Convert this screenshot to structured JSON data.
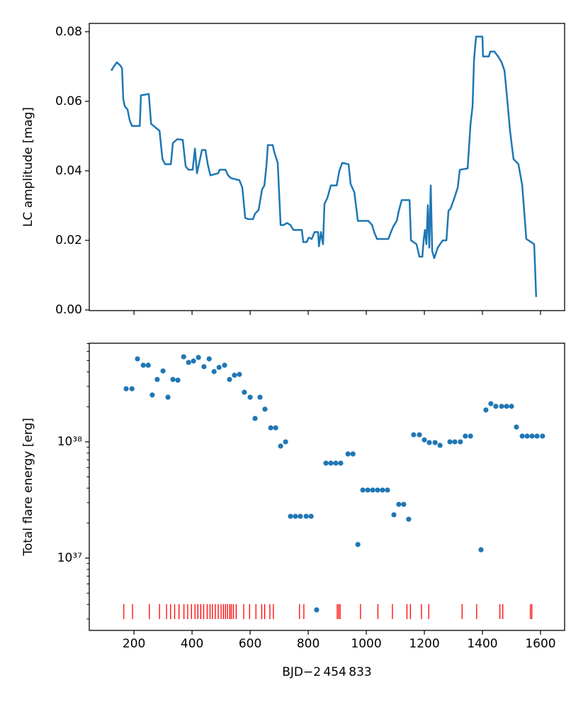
{
  "chart_data": [
    {
      "type": "line",
      "ylabel": "LC amplitude [mag]",
      "color": "#1f77b4",
      "x": [
        122,
        129,
        141,
        154,
        159,
        163,
        168,
        178,
        185,
        193,
        220,
        224,
        251,
        259,
        288,
        298,
        307,
        327,
        334,
        349,
        368,
        378,
        388,
        402,
        410,
        417,
        434,
        446,
        454,
        463,
        490,
        495,
        515,
        524,
        534,
        563,
        573,
        583,
        593,
        610,
        617,
        629,
        641,
        649,
        656,
        661,
        678,
        683,
        695,
        705,
        715,
        727,
        739,
        749,
        778,
        783,
        795,
        802,
        812,
        822,
        834,
        837,
        844,
        851,
        856,
        866,
        878,
        888,
        898,
        907,
        917,
        939,
        946,
        959,
        971,
        1007,
        1020,
        1027,
        1037,
        1076,
        1085,
        1093,
        1105,
        1112,
        1122,
        1149,
        1154,
        1173,
        1183,
        1193,
        1198,
        1202,
        1207,
        1212,
        1217,
        1222,
        1227,
        1234,
        1246,
        1263,
        1276,
        1283,
        1290,
        1305,
        1315,
        1322,
        1349,
        1359,
        1366,
        1371,
        1378,
        1400,
        1402,
        1422,
        1427,
        1441,
        1454,
        1466,
        1476,
        1483,
        1495,
        1507,
        1524,
        1537,
        1551,
        1568,
        1578,
        1580,
        1585
      ],
      "values": [
        0.0688,
        0.0698,
        0.0712,
        0.0702,
        0.0694,
        0.0607,
        0.0586,
        0.0576,
        0.0546,
        0.0529,
        0.0529,
        0.0617,
        0.0621,
        0.0535,
        0.0515,
        0.0434,
        0.0419,
        0.0419,
        0.048,
        0.0491,
        0.0489,
        0.0413,
        0.0403,
        0.0403,
        0.0464,
        0.0393,
        0.046,
        0.046,
        0.0419,
        0.0387,
        0.0393,
        0.0403,
        0.0403,
        0.0387,
        0.0379,
        0.0373,
        0.0352,
        0.0265,
        0.0261,
        0.0261,
        0.0277,
        0.0287,
        0.0346,
        0.0358,
        0.0413,
        0.0474,
        0.0474,
        0.0454,
        0.0423,
        0.0244,
        0.0244,
        0.025,
        0.0244,
        0.023,
        0.023,
        0.0195,
        0.0195,
        0.0208,
        0.0204,
        0.0224,
        0.0224,
        0.0183,
        0.0224,
        0.0189,
        0.0305,
        0.0322,
        0.0358,
        0.0358,
        0.0358,
        0.0399,
        0.0423,
        0.0419,
        0.0362,
        0.0338,
        0.0256,
        0.0256,
        0.0244,
        0.0224,
        0.0204,
        0.0204,
        0.0224,
        0.024,
        0.0256,
        0.0285,
        0.0316,
        0.0316,
        0.02,
        0.0189,
        0.0153,
        0.0153,
        0.0204,
        0.023,
        0.0189,
        0.0301,
        0.0179,
        0.0358,
        0.0169,
        0.0149,
        0.0179,
        0.02,
        0.02,
        0.0285,
        0.0291,
        0.0326,
        0.0352,
        0.0403,
        0.0407,
        0.0535,
        0.0586,
        0.0719,
        0.0786,
        0.0786,
        0.0729,
        0.0729,
        0.0743,
        0.0743,
        0.0729,
        0.0712,
        0.0688,
        0.0627,
        0.0515,
        0.0434,
        0.0419,
        0.0358,
        0.0204,
        0.0195,
        0.0189,
        0.0149,
        0.0037
      ],
      "xlim": [
        46,
        1683
      ],
      "ylim": [
        -0.0002,
        0.0824
      ],
      "yticks": [
        {
          "value": 0,
          "label": "0.00"
        },
        {
          "value": 0.02,
          "label": "0.02"
        },
        {
          "value": 0.04,
          "label": "0.04"
        },
        {
          "value": 0.06,
          "label": "0.06"
        },
        {
          "value": 0.08,
          "label": "0.08"
        }
      ]
    },
    {
      "type": "scatter",
      "ylabel": "Total flare energy [erg]",
      "xlabel": "BJD−2 454 833",
      "color": "#1f77b4",
      "log_y": true,
      "x": [
        173,
        193,
        212,
        232,
        249,
        263,
        280,
        300,
        317,
        334,
        351,
        371,
        388,
        405,
        422,
        441,
        459,
        476,
        493,
        512,
        529,
        546,
        563,
        580,
        600,
        617,
        634,
        651,
        671,
        688,
        705,
        722,
        739,
        756,
        773,
        793,
        810,
        829,
        861,
        878,
        895,
        912,
        937,
        954,
        971,
        988,
        1005,
        1022,
        1039,
        1056,
        1073,
        1095,
        1112,
        1129,
        1146,
        1163,
        1183,
        1200,
        1217,
        1237,
        1254,
        1288,
        1305,
        1324,
        1341,
        1359,
        1395,
        1412,
        1429,
        1446,
        1466,
        1483,
        1500,
        1517,
        1537,
        1554,
        1571,
        1588,
        1607
      ],
      "values": [
        2.86e+38,
        2.86e+38,
        5.17e+38,
        4.56e+38,
        4.56e+38,
        2.53e+38,
        3.44e+38,
        4.07e+38,
        2.42e+38,
        3.44e+38,
        3.39e+38,
        5.39e+38,
        4.82e+38,
        4.96e+38,
        5.32e+38,
        4.43e+38,
        5.17e+38,
        4.02e+38,
        4.37e+38,
        4.56e+38,
        3.44e+38,
        3.74e+38,
        3.8e+38,
        2.67e+38,
        2.42e+38,
        1.59e+38,
        2.42e+38,
        1.91e+38,
        1.32e+38,
        1.32e+38,
        9.2e+37,
        1e+38,
        2.29e+37,
        2.29e+37,
        2.29e+37,
        2.29e+37,
        2.29e+37,
        3.59e+36,
        6.56e+37,
        6.56e+37,
        6.56e+37,
        6.56e+37,
        7.87e+37,
        7.87e+37,
        1.31e+37,
        3.85e+37,
        3.85e+37,
        3.85e+37,
        3.85e+37,
        3.85e+37,
        3.85e+37,
        2.36e+37,
        2.9e+37,
        2.9e+37,
        2.16e+37,
        1.15e+38,
        1.15e+38,
        1.04e+38,
        9.86e+37,
        9.86e+37,
        9.33e+37,
        1e+38,
        1e+38,
        1e+38,
        1.12e+38,
        1.12e+38,
        1.18e+37,
        1.88e+38,
        2.13e+38,
        2.02e+38,
        2.02e+38,
        2.02e+38,
        2.02e+38,
        1.34e+38,
        1.12e+38,
        1.12e+38,
        1.12e+38,
        1.12e+38,
        1.12e+38
      ],
      "events": {
        "color": "#ff0000",
        "x": [
          165,
          195,
          253,
          288,
          312,
          326,
          340,
          355,
          372,
          385,
          398,
          410,
          420,
          430,
          440,
          452,
          462,
          470,
          480,
          490,
          500,
          508,
          515,
          522,
          530,
          535,
          542,
          552,
          578,
          598,
          620,
          640,
          650,
          668,
          680,
          770,
          785,
          900,
          905,
          910,
          980,
          1040,
          1090,
          1140,
          1152,
          1190,
          1215,
          1330,
          1380,
          1460,
          1470,
          1565,
          1570
        ]
      },
      "xlim": [
        46,
        1683
      ],
      "ylim": [
        2.39e+36,
        7.05e+38
      ],
      "xticks": [
        200,
        400,
        600,
        800,
        1000,
        1200,
        1400,
        1600
      ],
      "yticks": [
        {
          "value": 1e+37,
          "label": "10³⁷"
        },
        {
          "value": 1e+38,
          "label": "10³⁸"
        }
      ],
      "yminorticks": [
        3e+36,
        4e+36,
        5e+36,
        6e+36,
        7e+36,
        8e+36,
        9e+36,
        2e+37,
        3e+37,
        4e+37,
        5e+37,
        6e+37,
        7e+37,
        8e+37,
        9e+37,
        2e+38,
        3e+38,
        4e+38,
        5e+38,
        6e+38,
        7e+38
      ]
    }
  ]
}
